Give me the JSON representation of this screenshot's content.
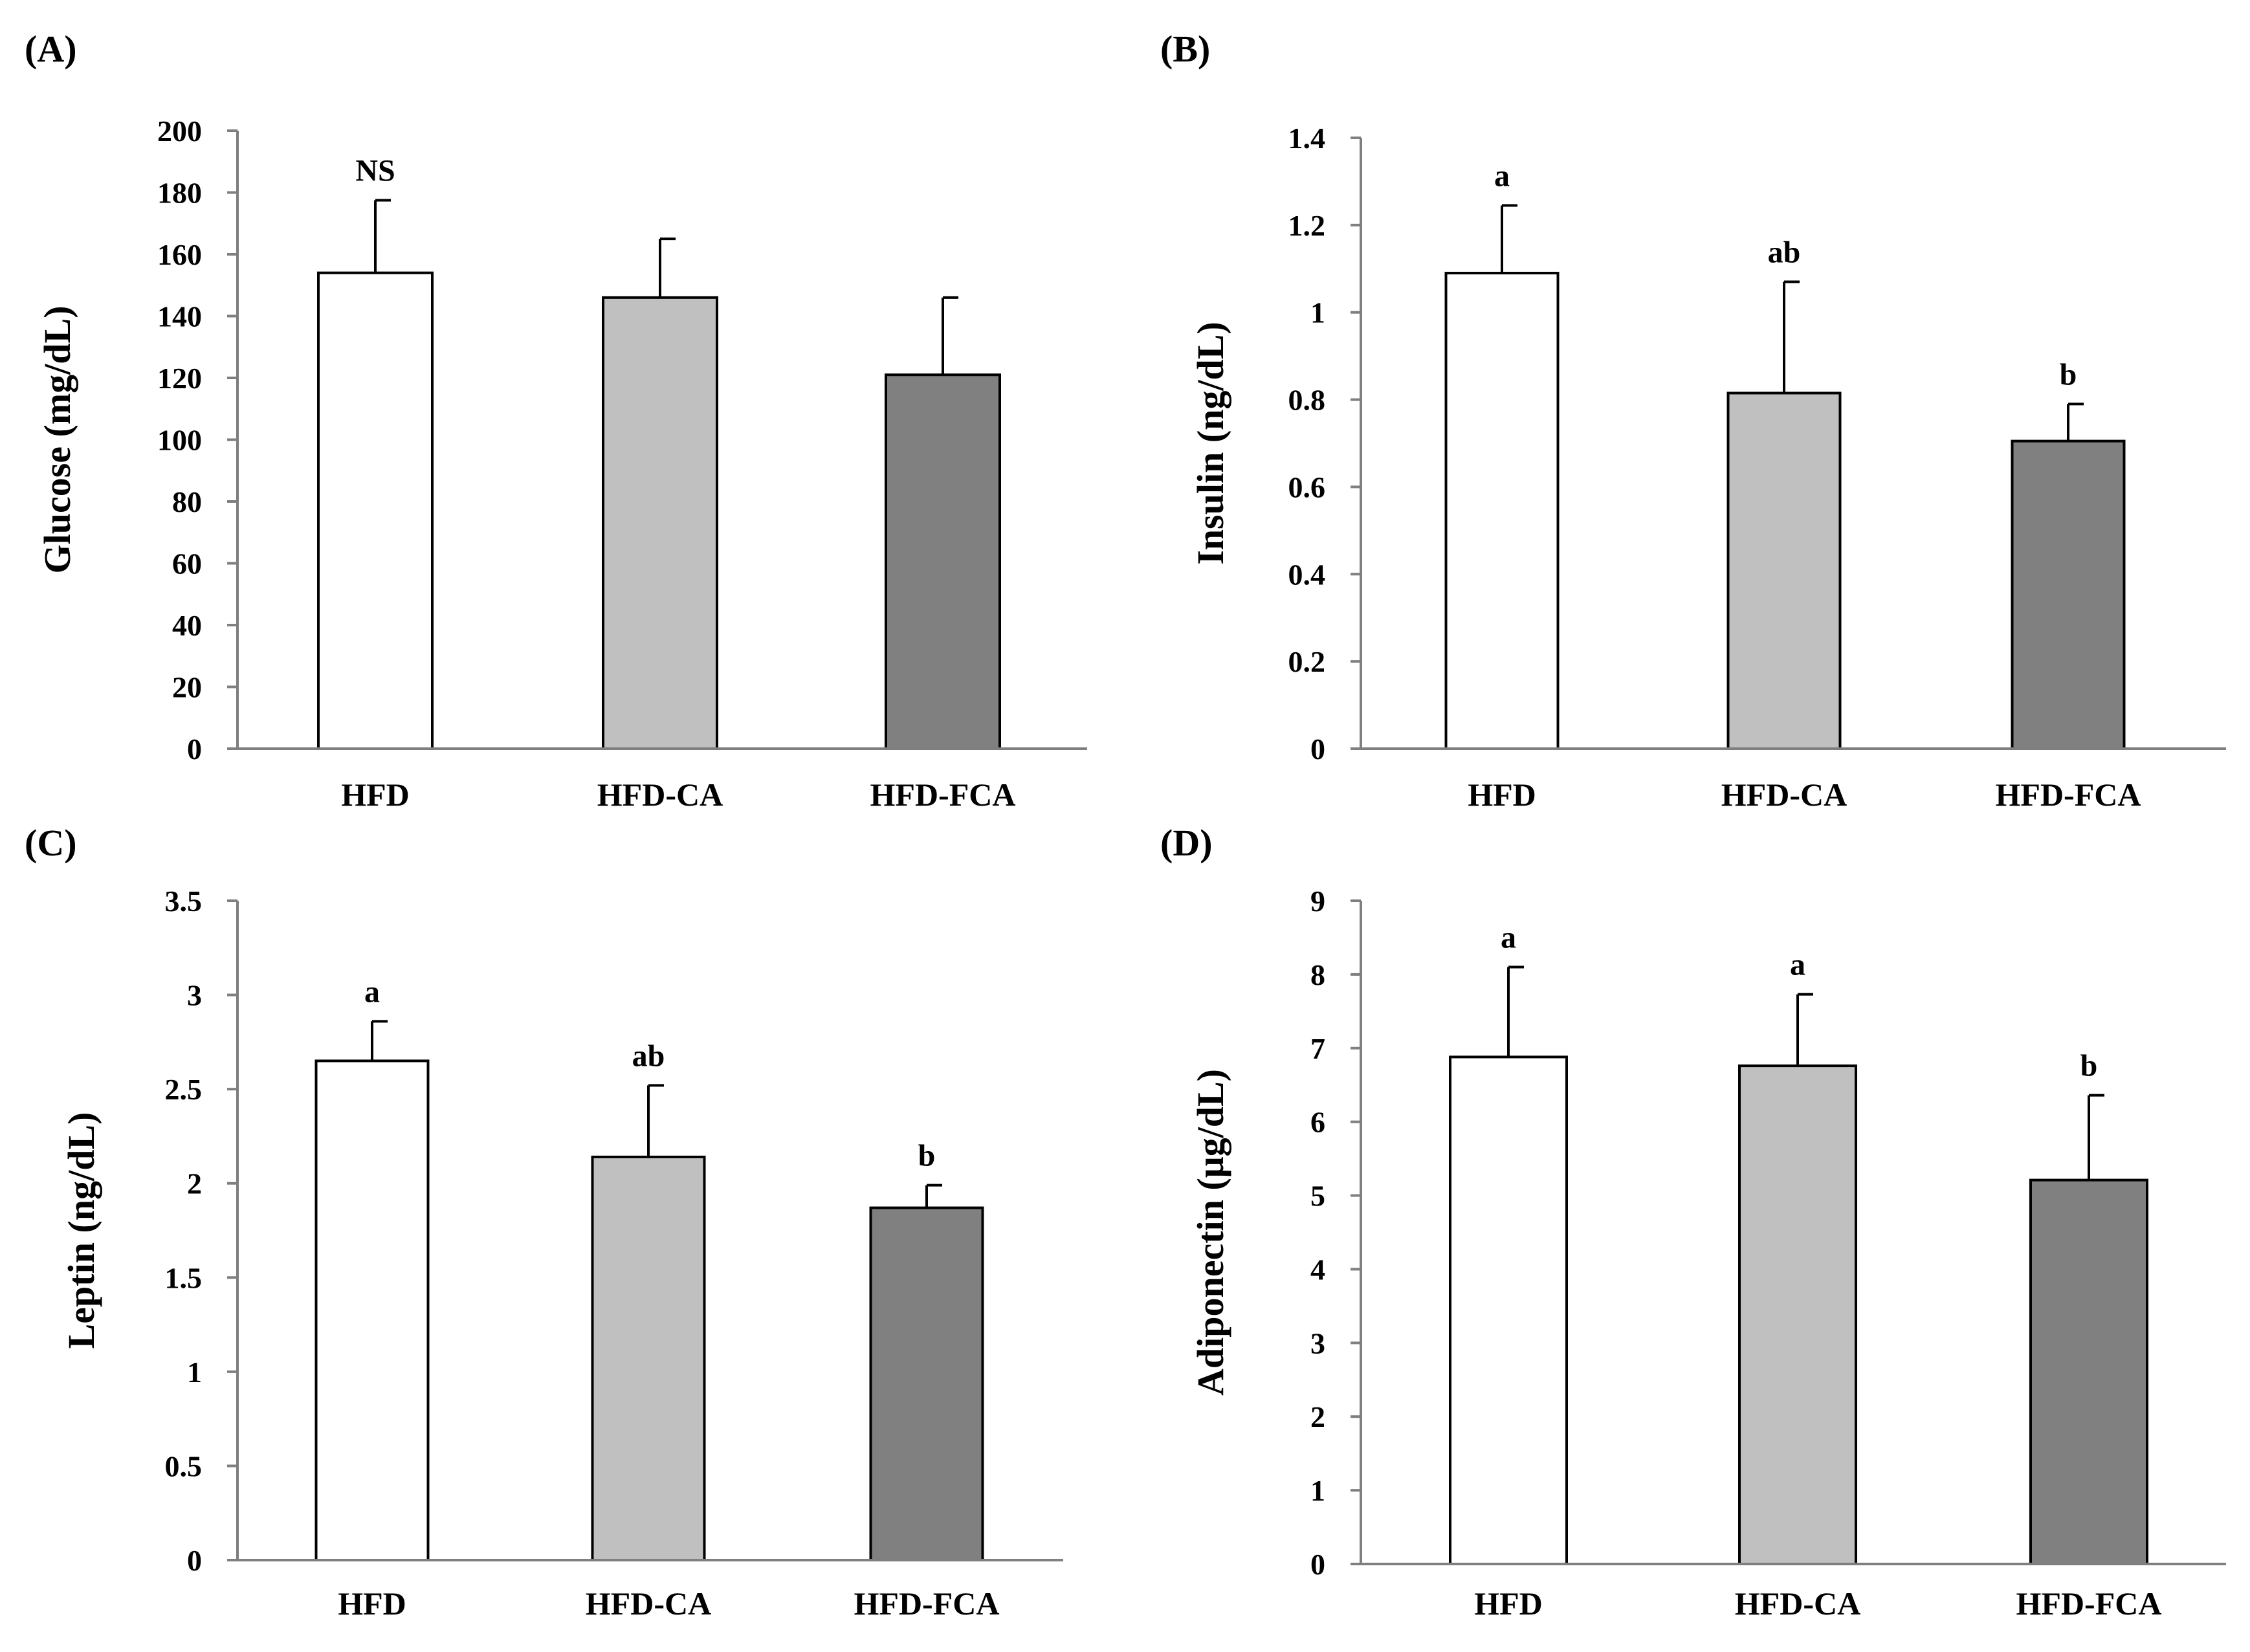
{
  "chart_data": [
    {
      "panel_label": "(A)",
      "type": "bar",
      "categories": [
        "HFD",
        "HFD-CA",
        "HFD-FCA"
      ],
      "values": [
        154,
        146,
        121
      ],
      "errors": [
        23.5,
        19,
        25
      ],
      "annotations": [
        "NS",
        "",
        ""
      ],
      "ylabel": "Glucose (mg/dL)",
      "xlabel": "",
      "ylim": [
        0,
        200
      ],
      "yticks": [
        0,
        20,
        40,
        60,
        80,
        100,
        120,
        140,
        160,
        180,
        200
      ],
      "ytick_labels": [
        "0",
        "20",
        "40",
        "60",
        "80",
        "100",
        "120",
        "140",
        "160",
        "180",
        "200"
      ],
      "grid": false
    },
    {
      "panel_label": "(B)",
      "type": "bar",
      "categories": [
        "HFD",
        "HFD-CA",
        "HFD-FCA"
      ],
      "values": [
        1.09,
        0.815,
        0.705
      ],
      "errors": [
        0.155,
        0.255,
        0.085
      ],
      "annotations": [
        "a",
        "ab",
        "b"
      ],
      "ylabel": "Insulin (ng/dL)",
      "xlabel": "",
      "ylim": [
        0,
        1.4
      ],
      "yticks": [
        0,
        0.2,
        0.4,
        0.6,
        0.8,
        1.0,
        1.2,
        1.4
      ],
      "ytick_labels": [
        "0",
        "0.2",
        "0.4",
        "0.6",
        "0.8",
        "1",
        "1.2",
        "1.4"
      ],
      "grid": false
    },
    {
      "panel_label": "(C)",
      "type": "bar",
      "categories": [
        "HFD",
        "HFD-CA",
        "HFD-FCA"
      ],
      "values": [
        2.65,
        2.14,
        1.87
      ],
      "errors": [
        0.21,
        0.38,
        0.12
      ],
      "annotations": [
        "a",
        "ab",
        "b"
      ],
      "ylabel": "Leptin (ng/dL)",
      "xlabel": "",
      "ylim": [
        0,
        3.5
      ],
      "yticks": [
        0,
        0.5,
        1.0,
        1.5,
        2.0,
        2.5,
        3.0,
        3.5
      ],
      "ytick_labels": [
        "0",
        "0.5",
        "1",
        "1.5",
        "2",
        "2.5",
        "3",
        "3.5"
      ],
      "grid": false
    },
    {
      "panel_label": "(D)",
      "type": "bar",
      "categories": [
        "HFD",
        "HFD-CA",
        "HFD-FCA"
      ],
      "values": [
        6.88,
        6.76,
        5.21
      ],
      "errors": [
        1.22,
        0.97,
        1.15
      ],
      "annotations": [
        "a",
        "a",
        "b"
      ],
      "ylabel": "Adiponectin (μg/dL)",
      "xlabel": "",
      "ylim": [
        0,
        9
      ],
      "yticks": [
        0,
        1,
        2,
        3,
        4,
        5,
        6,
        7,
        8,
        9
      ],
      "ytick_labels": [
        "0",
        "1",
        "2",
        "3",
        "4",
        "5",
        "6",
        "7",
        "8",
        "9"
      ],
      "grid": false
    }
  ],
  "colors": {
    "bar_fills": [
      "#ffffff",
      "#c0c0c0",
      "#808080"
    ],
    "axis": "#7f7f7f",
    "bar_stroke": "#000000",
    "text": "#000000"
  }
}
